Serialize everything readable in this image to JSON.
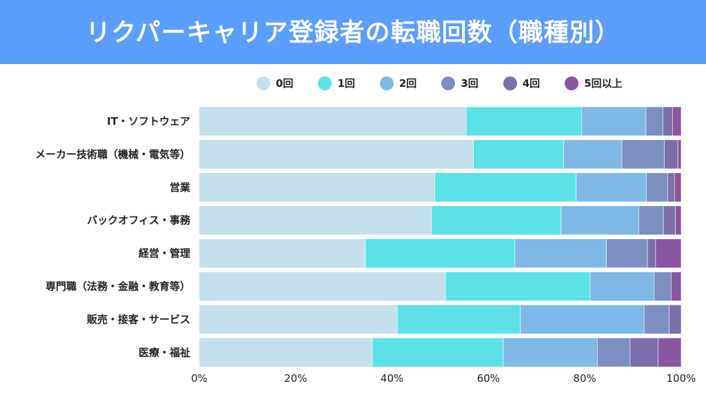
{
  "chart_data": {
    "type": "bar",
    "orientation": "horizontal",
    "stacked": "100%",
    "title": "リクパーキャリア登録者の転職回数（職種別）",
    "categories": [
      "IT・ソフトウェア",
      "メーカー技術職（機械・電気等）",
      "営業",
      "バックオフィス・事務",
      "経営・管理",
      "専門職（法務・金融・教育等）",
      "販売・接客・サービス",
      "医療・福祉"
    ],
    "series": [
      {
        "name": "0回",
        "color": "#c3dfeb",
        "values": [
          55.4,
          56.9,
          48.9,
          48.2,
          34.5,
          51.1,
          41.1,
          35.9
        ]
      },
      {
        "name": "1回",
        "color": "#5ce1e6",
        "values": [
          23.9,
          18.7,
          29.3,
          26.9,
          31.0,
          30.0,
          25.5,
          27.2
        ]
      },
      {
        "name": "2回",
        "color": "#7fb8e5",
        "values": [
          13.4,
          12.1,
          14.6,
          16.1,
          19.0,
          13.3,
          25.7,
          19.5
        ]
      },
      {
        "name": "3回",
        "color": "#7b8fc0",
        "values": [
          3.5,
          8.8,
          4.4,
          5.1,
          8.5,
          3.5,
          5.2,
          6.8
        ]
      },
      {
        "name": "4回",
        "color": "#7b6eab",
        "values": [
          2.0,
          2.8,
          1.4,
          2.5,
          1.7,
          0,
          2.5,
          5.8
        ]
      },
      {
        "name": "5回以上",
        "color": "#8b56a0",
        "values": [
          1.8,
          0.7,
          1.4,
          1.2,
          5.3,
          2.1,
          0,
          4.8
        ]
      }
    ],
    "xticks": [
      "0%",
      "20%",
      "40%",
      "60%",
      "80%",
      "100%"
    ],
    "xlim": [
      0,
      100
    ],
    "grid": false,
    "legend": "top"
  },
  "title_bar_color": "#5a9eff"
}
